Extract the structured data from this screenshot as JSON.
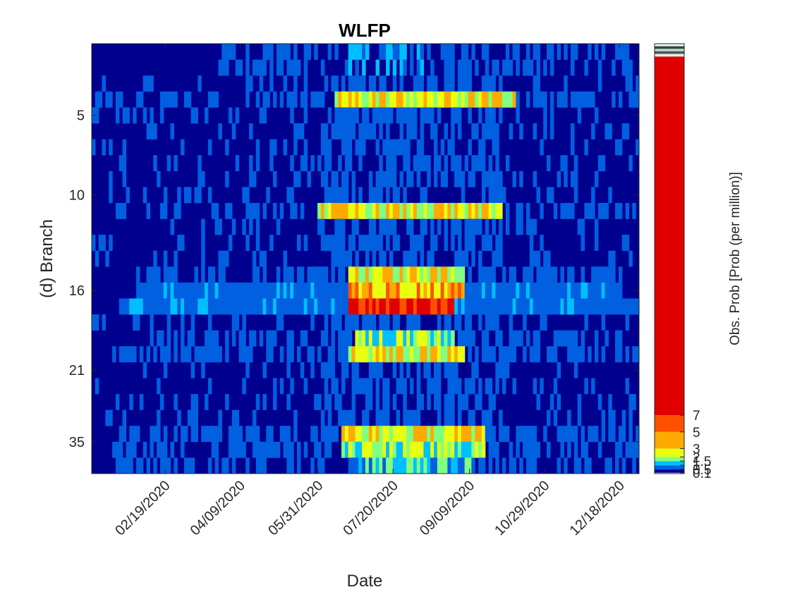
{
  "chart_data": {
    "type": "heatmap",
    "title": "WLFP",
    "xlabel": "Date",
    "ylabel": "(d) Branch",
    "x_range": [
      "01/01/2020",
      "12/31/2020"
    ],
    "x_ticks": [
      "02/19/2020",
      "04/09/2020",
      "05/31/2020",
      "07/20/2020",
      "09/09/2020",
      "10/29/2020",
      "12/18/2020"
    ],
    "y_ticks": [
      "5",
      "10",
      "16",
      "21",
      "35"
    ],
    "rows": 27,
    "colorbar": {
      "label": "Obs. Prob [Prob (per million)]",
      "levels": [
        {
          "label": "0.1",
          "color": "#00008f"
        },
        {
          "label": "0.5",
          "color": "#0060e0"
        },
        {
          "label": "1",
          "color": "#00bfff"
        },
        {
          "label": "1.5",
          "color": "#80ff80"
        },
        {
          "label": "2",
          "color": "#e8ff10"
        },
        {
          "label": "3",
          "color": "#ffaa00"
        },
        {
          "label": "5",
          "color": "#ff5000"
        },
        {
          "label": "7",
          "color": "#e00000"
        }
      ]
    },
    "row_profiles": [
      {
        "row": 1,
        "level": 1,
        "active": [
          "03/20/2020",
          "12/31/2020"
        ],
        "peak": [
          "06/15/2020",
          "08/10/2020"
        ]
      },
      {
        "row": 2,
        "level": 1,
        "active": [
          "03/20/2020",
          "12/31/2020"
        ],
        "peak": [
          "06/15/2020",
          "08/10/2020"
        ]
      },
      {
        "row": 4,
        "level": 4,
        "active": [
          "01/01/2020",
          "12/31/2020"
        ],
        "peak": [
          "06/10/2020",
          "10/10/2020"
        ]
      },
      {
        "row": 11,
        "level": 4,
        "active": [
          "01/01/2020",
          "12/31/2020"
        ],
        "peak": [
          "05/31/2020",
          "09/30/2020"
        ]
      },
      {
        "row": 15,
        "level": 4,
        "active": [
          "01/30/2020",
          "12/20/2020"
        ],
        "peak": [
          "06/20/2020",
          "09/05/2020"
        ]
      },
      {
        "row": 16,
        "level": 5,
        "active": [
          "01/30/2020",
          "12/20/2020"
        ],
        "peak": [
          "06/20/2020",
          "09/05/2020"
        ]
      },
      {
        "row": 17,
        "level": 7,
        "active": [
          "01/20/2020",
          "12/31/2020"
        ],
        "peak": [
          "06/20/2020",
          "08/30/2020"
        ]
      },
      {
        "row": 19,
        "level": 3,
        "active": [
          "01/30/2020",
          "12/20/2020"
        ],
        "peak": [
          "06/25/2020",
          "08/30/2020"
        ]
      },
      {
        "row": 20,
        "level": 4,
        "active": [
          "01/15/2020",
          "12/31/2020"
        ],
        "peak": [
          "06/20/2020",
          "09/05/2020"
        ]
      },
      {
        "row": 25,
        "level": 4,
        "active": [
          "01/10/2020",
          "12/31/2020"
        ],
        "peak": [
          "06/15/2020",
          "09/20/2020"
        ]
      },
      {
        "row": 26,
        "level": 3,
        "active": [
          "01/10/2020",
          "12/31/2020"
        ],
        "peak": [
          "06/15/2020",
          "09/20/2020"
        ]
      },
      {
        "row": 27,
        "level": 2,
        "active": [
          "01/15/2020",
          "12/31/2020"
        ],
        "peak": [
          "06/25/2020",
          "09/10/2020"
        ]
      }
    ]
  }
}
